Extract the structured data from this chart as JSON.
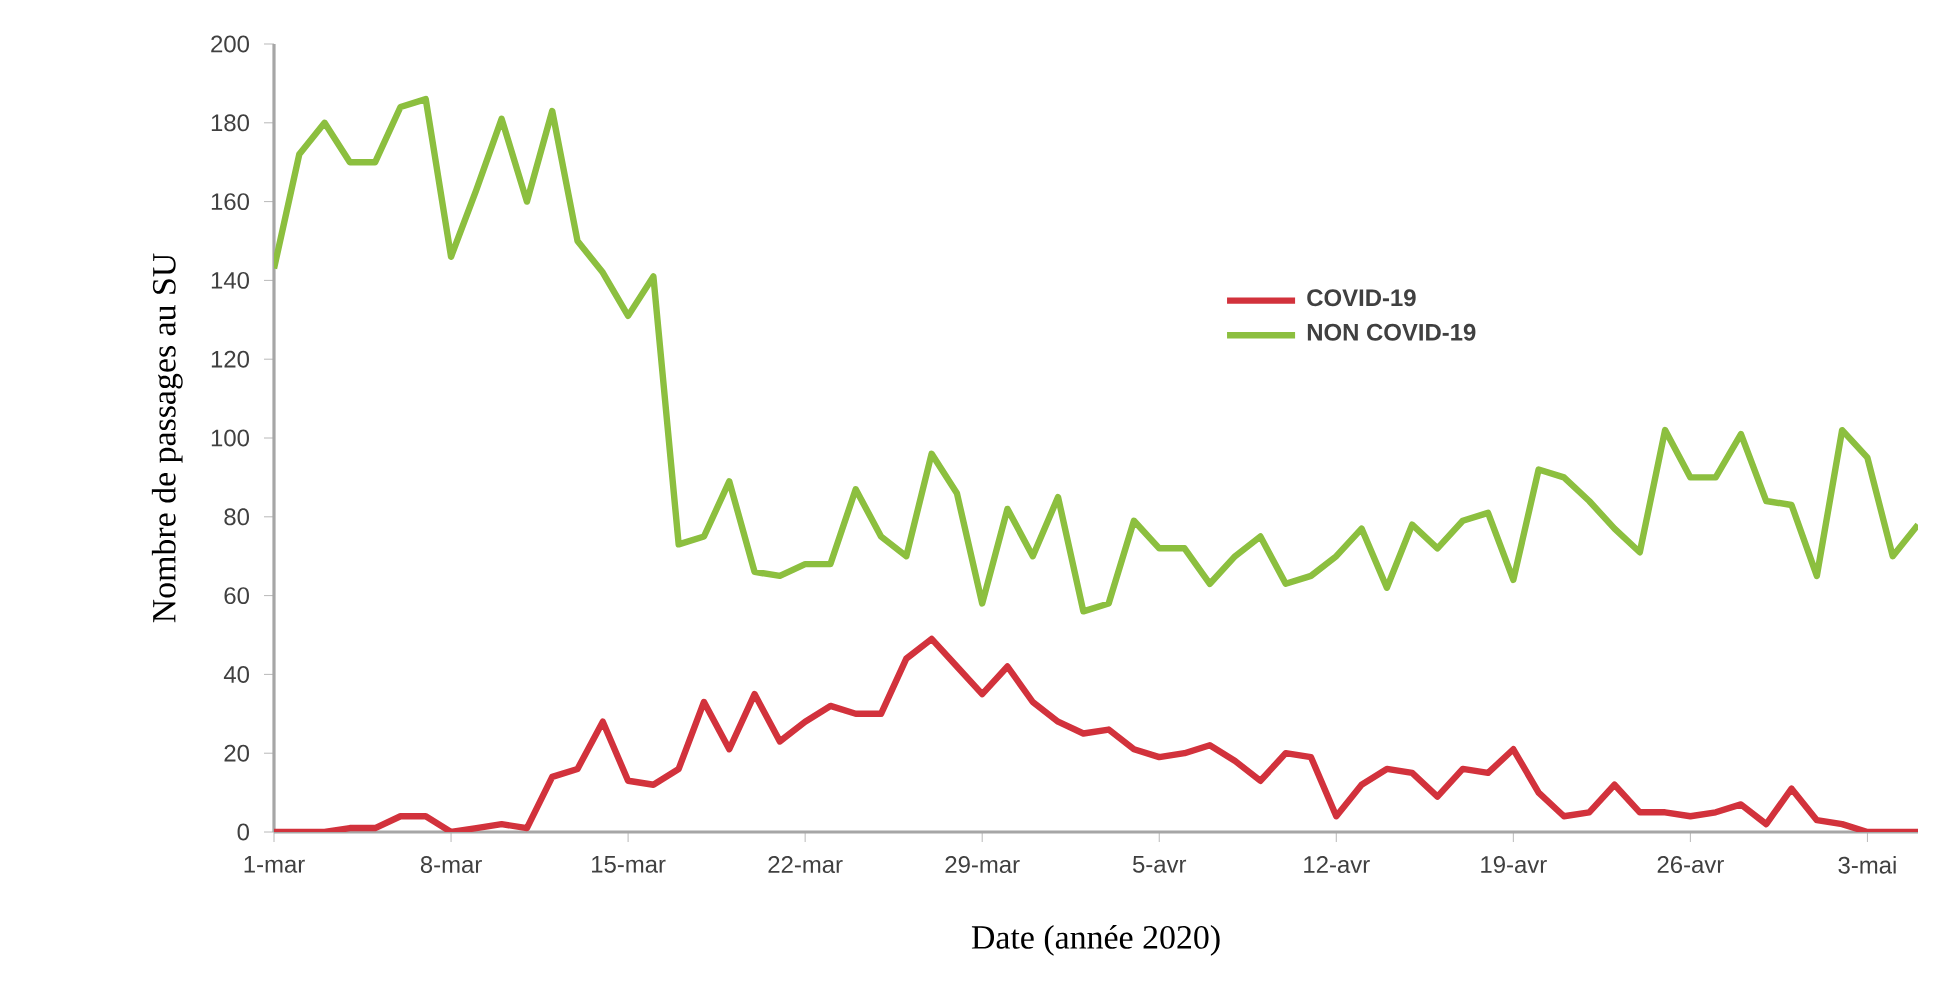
{
  "chart_data": {
    "type": "line",
    "xlabel": "Date (année 2020)",
    "ylabel": "Nombre de passages au SU",
    "x": [
      "2020-03-01",
      "2020-03-02",
      "2020-03-03",
      "2020-03-04",
      "2020-03-05",
      "2020-03-06",
      "2020-03-07",
      "2020-03-08",
      "2020-03-09",
      "2020-03-10",
      "2020-03-11",
      "2020-03-12",
      "2020-03-13",
      "2020-03-14",
      "2020-03-15",
      "2020-03-16",
      "2020-03-17",
      "2020-03-18",
      "2020-03-19",
      "2020-03-20",
      "2020-03-21",
      "2020-03-22",
      "2020-03-23",
      "2020-03-24",
      "2020-03-25",
      "2020-03-26",
      "2020-03-27",
      "2020-03-28",
      "2020-03-29",
      "2020-03-30",
      "2020-03-31",
      "2020-04-01",
      "2020-04-02",
      "2020-04-03",
      "2020-04-04",
      "2020-04-05",
      "2020-04-06",
      "2020-04-07",
      "2020-04-08",
      "2020-04-09",
      "2020-04-10",
      "2020-04-11",
      "2020-04-12",
      "2020-04-13",
      "2020-04-14",
      "2020-04-15",
      "2020-04-16",
      "2020-04-17",
      "2020-04-18",
      "2020-04-19",
      "2020-04-20",
      "2020-04-21",
      "2020-04-22",
      "2020-04-23",
      "2020-04-24",
      "2020-04-25",
      "2020-04-26",
      "2020-04-27",
      "2020-04-28",
      "2020-04-29",
      "2020-04-30",
      "2020-05-01",
      "2020-05-02",
      "2020-05-03",
      "2020-05-04",
      "2020-05-05"
    ],
    "series": [
      {
        "name": "COVID-19",
        "color": "#d2323c",
        "values": [
          0,
          0,
          0,
          1,
          1,
          4,
          4,
          0,
          1,
          2,
          1,
          14,
          16,
          28,
          13,
          12,
          16,
          33,
          21,
          35,
          23,
          28,
          32,
          30,
          30,
          44,
          49,
          42,
          35,
          42,
          33,
          28,
          25,
          26,
          21,
          19,
          20,
          22,
          18,
          13,
          20,
          19,
          4,
          12,
          16,
          15,
          9,
          16,
          15,
          21,
          10,
          4,
          5,
          12,
          5,
          5,
          4,
          5,
          7,
          2,
          11,
          3,
          2,
          0,
          0,
          0
        ]
      },
      {
        "name": "NON COVID-19",
        "color": "#8cbf3f",
        "values": [
          143,
          172,
          180,
          170,
          170,
          184,
          186,
          146,
          163,
          181,
          160,
          183,
          150,
          142,
          131,
          141,
          73,
          75,
          89,
          66,
          65,
          68,
          68,
          87,
          75,
          70,
          96,
          86,
          58,
          82,
          70,
          85,
          56,
          58,
          79,
          72,
          72,
          63,
          70,
          75,
          63,
          65,
          70,
          77,
          62,
          78,
          72,
          79,
          81,
          64,
          92,
          90,
          84,
          77,
          71,
          102,
          90,
          90,
          101,
          84,
          83,
          65,
          102,
          95,
          70,
          78
        ]
      }
    ],
    "xlim": [
      "2020-03-01",
      "2020-05-05"
    ],
    "xticks": [
      {
        "value": "2020-03-01",
        "label": "1-mar"
      },
      {
        "value": "2020-03-08",
        "label": "8-mar"
      },
      {
        "value": "2020-03-15",
        "label": "15-mar"
      },
      {
        "value": "2020-03-22",
        "label": "22-mar"
      },
      {
        "value": "2020-03-29",
        "label": "29-mar"
      },
      {
        "value": "2020-04-05",
        "label": "5-avr"
      },
      {
        "value": "2020-04-12",
        "label": "12-avr"
      },
      {
        "value": "2020-04-19",
        "label": "19-avr"
      },
      {
        "value": "2020-04-26",
        "label": "26-avr"
      },
      {
        "value": "2020-05-03",
        "label": "3-mai"
      }
    ],
    "ylim": [
      0,
      200
    ],
    "yticks": [
      0,
      20,
      40,
      60,
      80,
      100,
      120,
      140,
      160,
      180,
      200
    ],
    "grid": false,
    "legend": "top right",
    "marker": "none",
    "line_style": "solid"
  }
}
